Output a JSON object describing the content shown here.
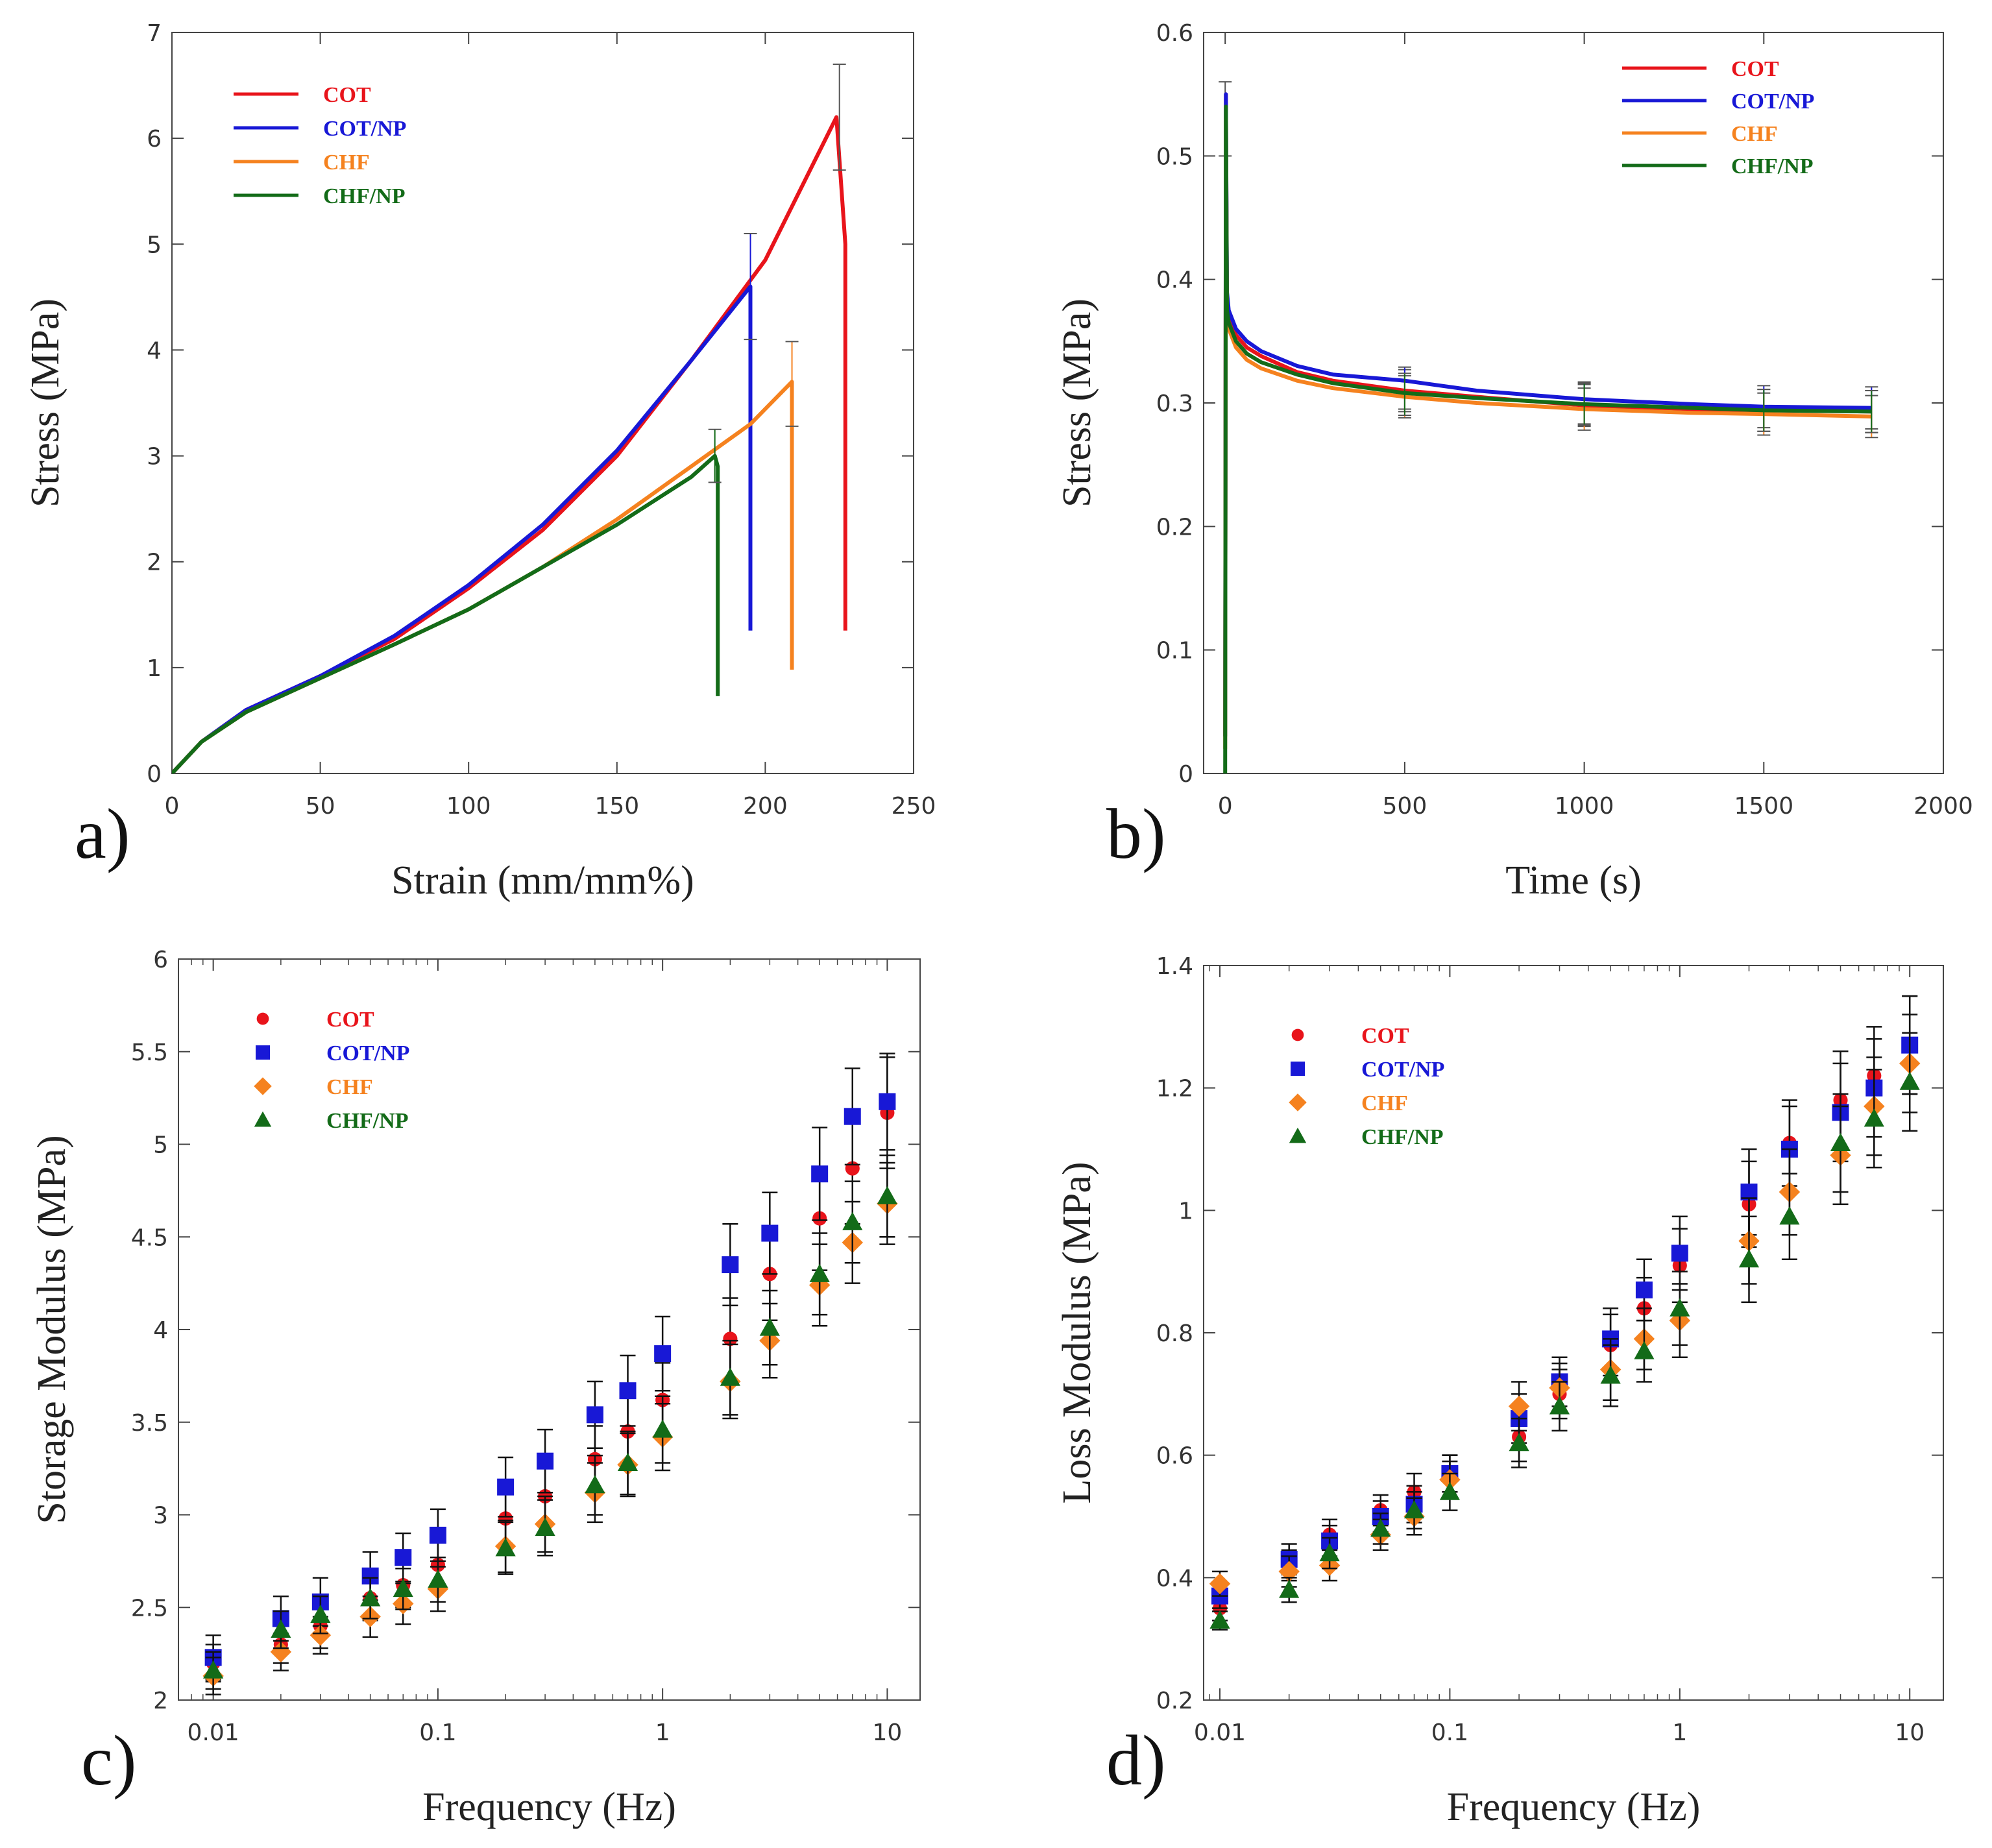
{
  "chart_data": [
    {
      "id": "a",
      "panel_label": "a)",
      "type": "line",
      "xlabel": "Strain (mm/mm%)",
      "ylabel": "Stress (MPa)",
      "xlim": [
        0,
        250
      ],
      "ylim": [
        0,
        7
      ],
      "xscale": "linear",
      "xticks": [
        0,
        50,
        100,
        150,
        200,
        250
      ],
      "yticks": [
        0,
        1,
        2,
        3,
        4,
        5,
        6,
        7
      ],
      "xtick_labels": [
        "0",
        "50",
        "100",
        "150",
        "200",
        "250"
      ],
      "ytick_labels": [
        "0",
        "1",
        "2",
        "3",
        "4",
        "5",
        "6",
        "7"
      ],
      "legend_position": "top-left",
      "series": [
        {
          "name": "COT",
          "color": "#e8141b",
          "x": [
            0,
            10,
            25,
            50,
            75,
            100,
            125,
            150,
            175,
            200,
            224,
            227,
            227
          ],
          "y": [
            0,
            0.3,
            0.6,
            0.92,
            1.27,
            1.75,
            2.3,
            3.0,
            3.9,
            4.85,
            6.2,
            5.0,
            1.35
          ],
          "error_points": [
            {
              "x": 225,
              "y": 6.2,
              "err": 0.5
            }
          ]
        },
        {
          "name": "COT/NP",
          "color": "#1818d6",
          "x": [
            0,
            10,
            25,
            50,
            75,
            100,
            125,
            150,
            175,
            195,
            195
          ],
          "y": [
            0,
            0.3,
            0.6,
            0.92,
            1.3,
            1.78,
            2.35,
            3.05,
            3.9,
            4.6,
            1.35
          ],
          "error_points": [
            {
              "x": 195,
              "y": 4.6,
              "err": 0.5
            }
          ]
        },
        {
          "name": "CHF",
          "color": "#f5821f",
          "x": [
            0,
            10,
            25,
            50,
            75,
            100,
            125,
            150,
            175,
            195,
            209,
            209
          ],
          "y": [
            0,
            0.3,
            0.58,
            0.9,
            1.22,
            1.55,
            1.95,
            2.4,
            2.9,
            3.3,
            3.7,
            0.98
          ],
          "error_points": [
            {
              "x": 209,
              "y": 3.68,
              "err": 0.4
            }
          ]
        },
        {
          "name": "CHF/NP",
          "color": "#136b18",
          "x": [
            0,
            10,
            25,
            50,
            75,
            100,
            125,
            150,
            175,
            183,
            184,
            184
          ],
          "y": [
            0,
            0.3,
            0.58,
            0.9,
            1.22,
            1.55,
            1.95,
            2.35,
            2.8,
            3.0,
            2.9,
            0.73
          ],
          "error_points": [
            {
              "x": 183,
              "y": 3.0,
              "err": 0.25
            }
          ]
        }
      ]
    },
    {
      "id": "b",
      "panel_label": "b)",
      "type": "line",
      "xlabel": "Time (s)",
      "ylabel": "Stress (MPa)",
      "xlim": [
        -60,
        2000
      ],
      "ylim": [
        0,
        0.6
      ],
      "xscale": "linear",
      "xticks": [
        0,
        500,
        1000,
        1500,
        2000
      ],
      "yticks": [
        0,
        0.1,
        0.2,
        0.3,
        0.4,
        0.5,
        0.6
      ],
      "xtick_labels": [
        "0",
        "500",
        "1000",
        "1500",
        "2000"
      ],
      "ytick_labels": [
        "0",
        "0.1",
        "0.2",
        "0.3",
        "0.4",
        "0.5",
        "0.6"
      ],
      "legend_position": "top-right",
      "series": [
        {
          "name": "COT",
          "color": "#e8141b",
          "x": [
            0,
            2,
            5,
            10,
            30,
            60,
            100,
            200,
            300,
            500,
            700,
            1000,
            1300,
            1500,
            1800
          ],
          "y": [
            0.03,
            0.55,
            0.38,
            0.37,
            0.355,
            0.345,
            0.338,
            0.325,
            0.318,
            0.31,
            0.305,
            0.298,
            0.295,
            0.294,
            0.293
          ],
          "error_points": [
            {
              "x": 0,
              "y": 0.53,
              "err": 0.03
            },
            {
              "x": 500,
              "y": 0.31,
              "err": 0.017
            },
            {
              "x": 1000,
              "y": 0.298,
              "err": 0.017
            },
            {
              "x": 1500,
              "y": 0.294,
              "err": 0.017
            },
            {
              "x": 1800,
              "y": 0.293,
              "err": 0.017
            }
          ]
        },
        {
          "name": "COT/NP",
          "color": "#1818d6",
          "x": [
            0,
            2,
            5,
            10,
            30,
            60,
            100,
            200,
            300,
            500,
            700,
            1000,
            1300,
            1500,
            1800
          ],
          "y": [
            0.03,
            0.55,
            0.39,
            0.375,
            0.36,
            0.35,
            0.342,
            0.33,
            0.323,
            0.318,
            0.31,
            0.303,
            0.299,
            0.297,
            0.296
          ],
          "error_points": [
            {
              "x": 500,
              "y": 0.312,
              "err": 0.017
            },
            {
              "x": 1000,
              "y": 0.3,
              "err": 0.017
            },
            {
              "x": 1500,
              "y": 0.297,
              "err": 0.017
            },
            {
              "x": 1800,
              "y": 0.296,
              "err": 0.017
            }
          ]
        },
        {
          "name": "CHF",
          "color": "#f5821f",
          "x": [
            0,
            2,
            5,
            10,
            30,
            60,
            100,
            200,
            300,
            500,
            700,
            1000,
            1300,
            1500,
            1800
          ],
          "y": [
            0.02,
            0.53,
            0.37,
            0.36,
            0.345,
            0.335,
            0.328,
            0.318,
            0.312,
            0.305,
            0.3,
            0.295,
            0.292,
            0.291,
            0.289
          ],
          "error_points": [
            {
              "x": 500,
              "y": 0.305,
              "err": 0.017
            },
            {
              "x": 1000,
              "y": 0.295,
              "err": 0.017
            },
            {
              "x": 1500,
              "y": 0.291,
              "err": 0.017
            },
            {
              "x": 1800,
              "y": 0.289,
              "err": 0.017
            }
          ]
        },
        {
          "name": "CHF/NP",
          "color": "#136b18",
          "x": [
            0,
            2,
            5,
            10,
            30,
            60,
            100,
            200,
            300,
            500,
            700,
            1000,
            1300,
            1500,
            1800
          ],
          "y": [
            0.0,
            0.54,
            0.375,
            0.365,
            0.35,
            0.34,
            0.333,
            0.323,
            0.316,
            0.308,
            0.304,
            0.299,
            0.296,
            0.294,
            0.293
          ],
          "error_points": [
            {
              "x": 500,
              "y": 0.307,
              "err": 0.017
            },
            {
              "x": 1000,
              "y": 0.299,
              "err": 0.017
            },
            {
              "x": 1500,
              "y": 0.294,
              "err": 0.017
            },
            {
              "x": 1800,
              "y": 0.293,
              "err": 0.017
            }
          ]
        }
      ]
    },
    {
      "id": "c",
      "panel_label": "c)",
      "type": "scatter",
      "xlabel": "Frequency (Hz)",
      "ylabel": "Storage Modulus (MPa)",
      "xlim": [
        0.007,
        14
      ],
      "ylim": [
        2,
        6
      ],
      "xscale": "log",
      "xticks": [
        0.01,
        0.1,
        1,
        10
      ],
      "yticks": [
        2,
        2.5,
        3,
        3.5,
        4,
        4.5,
        5,
        5.5,
        6
      ],
      "xtick_labels": [
        "0.01",
        "0.1",
        "1",
        "10"
      ],
      "ytick_labels": [
        "2",
        "2.5",
        "3",
        "3.5",
        "4",
        "4.5",
        "5",
        "5.5",
        "6"
      ],
      "legend_position": "top-left",
      "x": [
        0.01,
        0.02,
        0.03,
        0.05,
        0.07,
        0.1,
        0.2,
        0.3,
        0.5,
        0.7,
        1,
        2,
        3,
        5,
        7,
        10
      ],
      "series": [
        {
          "name": "COT",
          "color": "#e8141b",
          "marker": "circle",
          "values": [
            2.2,
            2.3,
            2.4,
            2.55,
            2.62,
            2.73,
            2.98,
            3.1,
            3.3,
            3.45,
            3.62,
            3.95,
            4.3,
            4.6,
            4.87,
            5.17
          ],
          "errors": [
            0.1,
            0.1,
            0.12,
            0.12,
            0.12,
            0.12,
            0.15,
            0.15,
            0.18,
            0.2,
            0.2,
            0.22,
            0.25,
            0.28,
            0.3,
            0.3
          ]
        },
        {
          "name": "COT/NP",
          "color": "#1818d6",
          "marker": "square",
          "values": [
            2.23,
            2.44,
            2.53,
            2.67,
            2.77,
            2.89,
            3.15,
            3.29,
            3.54,
            3.67,
            3.87,
            4.35,
            4.52,
            4.84,
            5.15,
            5.23
          ],
          "errors": [
            0.12,
            0.12,
            0.13,
            0.13,
            0.13,
            0.14,
            0.16,
            0.17,
            0.18,
            0.19,
            0.2,
            0.22,
            0.22,
            0.25,
            0.26,
            0.26
          ]
        },
        {
          "name": "CHF",
          "color": "#f5821f",
          "marker": "diamond",
          "values": [
            2.13,
            2.26,
            2.35,
            2.45,
            2.52,
            2.6,
            2.83,
            2.95,
            3.12,
            3.27,
            3.42,
            3.72,
            3.94,
            4.24,
            4.47,
            4.68
          ],
          "errors": [
            0.1,
            0.1,
            0.1,
            0.11,
            0.11,
            0.12,
            0.14,
            0.15,
            0.16,
            0.17,
            0.18,
            0.2,
            0.2,
            0.22,
            0.22,
            0.22
          ]
        },
        {
          "name": "CHF/NP",
          "color": "#136b18",
          "marker": "triangle",
          "values": [
            2.16,
            2.38,
            2.46,
            2.55,
            2.6,
            2.65,
            2.82,
            2.93,
            3.16,
            3.28,
            3.46,
            3.74,
            4.01,
            4.3,
            4.58,
            4.72
          ],
          "errors": [
            0.1,
            0.1,
            0.1,
            0.11,
            0.11,
            0.12,
            0.14,
            0.15,
            0.16,
            0.17,
            0.18,
            0.2,
            0.2,
            0.22,
            0.22,
            0.22
          ]
        }
      ]
    },
    {
      "id": "d",
      "panel_label": "d)",
      "type": "scatter",
      "xlabel": "Frequency (Hz)",
      "ylabel": "Loss Modulus (MPa)",
      "xlim": [
        0.0085,
        14
      ],
      "ylim": [
        0.2,
        1.4
      ],
      "xscale": "log",
      "xticks": [
        0.01,
        0.1,
        1,
        10
      ],
      "yticks": [
        0.2,
        0.4,
        0.6,
        0.8,
        1,
        1.2,
        1.4
      ],
      "xtick_labels": [
        "0.01",
        "0.1",
        "1",
        "10"
      ],
      "ytick_labels": [
        "0.2",
        "0.4",
        "0.6",
        "0.8",
        "1",
        "1.2",
        "1.4"
      ],
      "legend_position": "top-left",
      "x": [
        0.01,
        0.02,
        0.03,
        0.05,
        0.07,
        0.1,
        0.2,
        0.3,
        0.5,
        0.7,
        1,
        2,
        3,
        5,
        7,
        10
      ],
      "series": [
        {
          "name": "COT",
          "color": "#e8141b",
          "marker": "circle",
          "values": [
            0.35,
            0.42,
            0.47,
            0.51,
            0.54,
            0.57,
            0.63,
            0.7,
            0.78,
            0.84,
            0.91,
            1.01,
            1.11,
            1.18,
            1.22,
            1.27
          ],
          "errors": [
            0.02,
            0.025,
            0.025,
            0.025,
            0.03,
            0.03,
            0.04,
            0.04,
            0.05,
            0.05,
            0.06,
            0.07,
            0.07,
            0.08,
            0.08,
            0.08
          ]
        },
        {
          "name": "COT/NP",
          "color": "#1818d6",
          "marker": "square",
          "values": [
            0.37,
            0.43,
            0.46,
            0.5,
            0.52,
            0.57,
            0.66,
            0.72,
            0.79,
            0.87,
            0.93,
            1.03,
            1.1,
            1.16,
            1.2,
            1.27
          ],
          "errors": [
            0.02,
            0.025,
            0.025,
            0.025,
            0.03,
            0.03,
            0.04,
            0.04,
            0.05,
            0.05,
            0.06,
            0.07,
            0.07,
            0.08,
            0.08,
            0.08
          ]
        },
        {
          "name": "CHF",
          "color": "#f5821f",
          "marker": "diamond",
          "values": [
            0.39,
            0.41,
            0.42,
            0.47,
            0.5,
            0.56,
            0.68,
            0.71,
            0.74,
            0.79,
            0.82,
            0.95,
            1.03,
            1.09,
            1.17,
            1.24
          ],
          "errors": [
            0.02,
            0.025,
            0.025,
            0.025,
            0.03,
            0.03,
            0.04,
            0.04,
            0.05,
            0.05,
            0.06,
            0.07,
            0.07,
            0.08,
            0.08,
            0.08
          ]
        },
        {
          "name": "CHF/NP",
          "color": "#136b18",
          "marker": "triangle",
          "values": [
            0.33,
            0.38,
            0.44,
            0.48,
            0.51,
            0.54,
            0.62,
            0.68,
            0.73,
            0.77,
            0.84,
            0.92,
            0.99,
            1.11,
            1.15,
            1.21
          ],
          "errors": [
            0.015,
            0.02,
            0.025,
            0.025,
            0.03,
            0.03,
            0.04,
            0.04,
            0.05,
            0.05,
            0.06,
            0.07,
            0.07,
            0.08,
            0.08,
            0.08
          ]
        }
      ]
    }
  ]
}
